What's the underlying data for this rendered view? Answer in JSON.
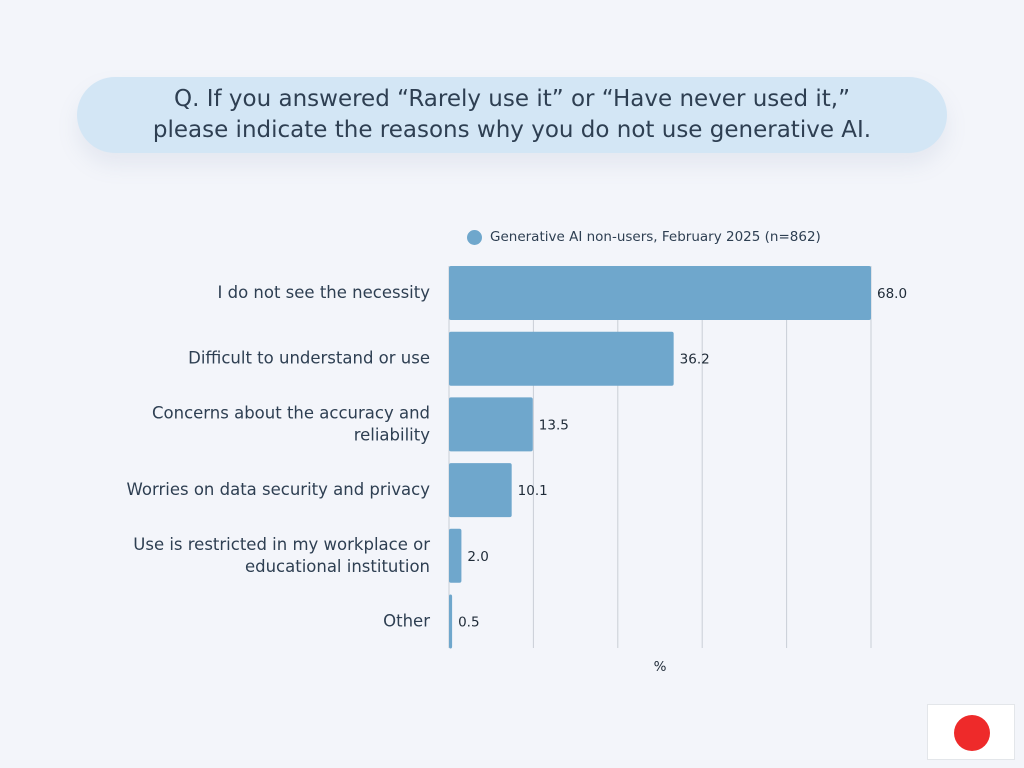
{
  "question": {
    "line1": "Q. If you answered “Rarely use it” or “Have never used it,”",
    "line2": "please indicate the reasons why you do not use generative AI."
  },
  "colors": {
    "bar": "#6fa7cc",
    "grid": "#c9ced6",
    "flag_red": "#ee2a2a"
  },
  "flag": {
    "icon": "japan-flag-icon"
  },
  "chart_data": {
    "type": "bar",
    "orientation": "horizontal",
    "categories": [
      [
        "I do not see the necessity"
      ],
      [
        "Difficult to understand or use"
      ],
      [
        "Concerns about the accuracy and",
        "reliability"
      ],
      [
        "Worries on data security and privacy"
      ],
      [
        "Use is restricted in my workplace or",
        "educational institution"
      ],
      [
        "Other"
      ]
    ],
    "series": [
      {
        "name": "Generative AI non-users, February 2025 (n=862)",
        "values": [
          68.0,
          36.2,
          13.5,
          10.1,
          2.0,
          0.5
        ]
      }
    ],
    "value_labels": [
      "68.0",
      "36.2",
      "13.5",
      "10.1",
      "2.0",
      "0.5"
    ],
    "xlabel": "%",
    "xlim": [
      0,
      70
    ],
    "grid": true,
    "legend": "top"
  }
}
